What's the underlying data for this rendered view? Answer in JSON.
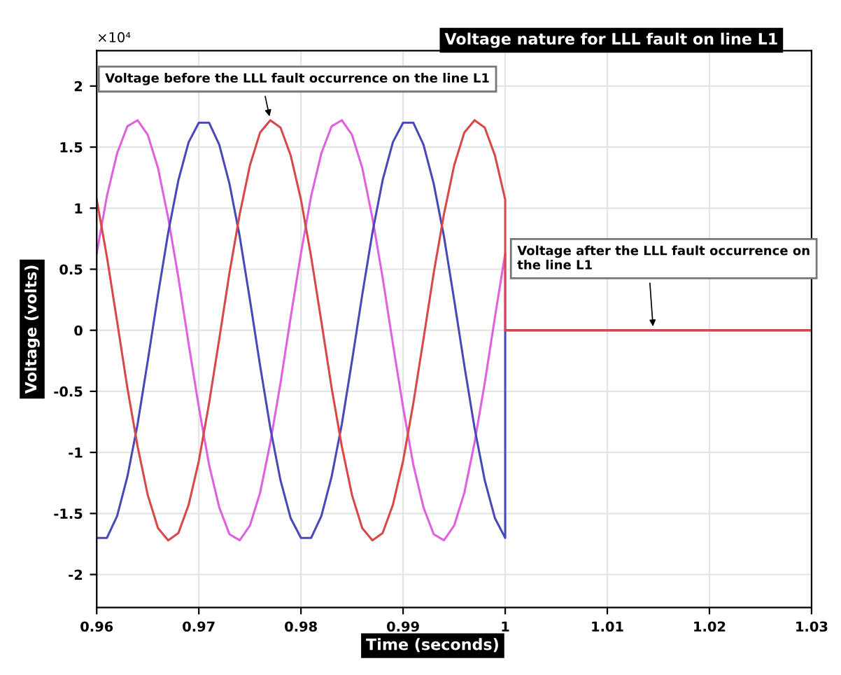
{
  "chart_data": {
    "type": "line",
    "title": "Voltage nature for LLL fault on line L1",
    "xlabel": "Time (seconds)",
    "ylabel": "Voltage (volts)",
    "x": [
      0.96,
      0.961,
      0.962,
      0.963,
      0.964,
      0.965,
      0.966,
      0.967,
      0.968,
      0.969,
      0.97,
      0.971,
      0.972,
      0.973,
      0.974,
      0.975,
      0.976,
      0.977,
      0.978,
      0.979,
      0.98,
      0.981,
      0.982,
      0.983,
      0.984,
      0.985,
      0.986,
      0.987,
      0.988,
      0.989,
      0.99,
      0.991,
      0.992,
      0.993,
      0.994,
      0.995,
      0.996,
      0.997,
      0.998,
      0.999,
      1,
      1,
      1.03
    ],
    "series": [
      {
        "color": "#e060e0",
        "values": [
          0.63,
          1.1,
          1.45,
          1.67,
          1.72,
          1.6,
          1.33,
          0.92,
          0.43,
          -0.11,
          -0.63,
          -1.1,
          -1.45,
          -1.67,
          -1.72,
          -1.6,
          -1.33,
          -0.92,
          -0.43,
          0.11,
          0.63,
          1.1,
          1.45,
          1.67,
          1.72,
          1.6,
          1.33,
          0.92,
          0.43,
          -0.11,
          -0.63,
          -1.1,
          -1.45,
          -1.67,
          -1.72,
          -1.6,
          -1.33,
          -0.92,
          -0.43,
          0.11,
          0.63,
          0,
          0
        ]
      },
      {
        "color": "#4848b8",
        "values": [
          -1.7,
          -1.7,
          -1.52,
          -1.2,
          -0.77,
          -0.25,
          0.29,
          0.8,
          1.23,
          1.54,
          1.7,
          1.7,
          1.52,
          1.2,
          0.77,
          0.25,
          -0.29,
          -0.8,
          -1.23,
          -1.54,
          -1.7,
          -1.7,
          -1.52,
          -1.2,
          -0.77,
          -0.25,
          0.29,
          0.8,
          1.23,
          1.54,
          1.7,
          1.7,
          1.52,
          1.2,
          0.77,
          0.25,
          -0.29,
          -0.8,
          -1.23,
          -1.54,
          -1.7,
          0,
          0
        ]
      },
      {
        "color": "#d84848",
        "values": [
          1.07,
          0.6,
          0.07,
          -0.47,
          -0.95,
          -1.35,
          -1.62,
          -1.72,
          -1.66,
          -1.43,
          -1.07,
          -0.6,
          -0.07,
          0.47,
          0.95,
          1.35,
          1.62,
          1.72,
          1.66,
          1.43,
          1.07,
          0.6,
          0.07,
          -0.47,
          -0.95,
          -1.35,
          -1.62,
          -1.72,
          -1.66,
          -1.43,
          -1.07,
          -0.6,
          -0.07,
          0.47,
          0.95,
          1.35,
          1.62,
          1.72,
          1.66,
          1.43,
          1.07,
          0,
          0
        ]
      }
    ],
    "xlim": [
      0.96,
      1.03
    ],
    "xticks": [
      0.96,
      0.97,
      0.98,
      0.99,
      1,
      1.01,
      1.02,
      1.03
    ],
    "ylim": [
      -2.27,
      2.29
    ],
    "yticks": [
      -2,
      -1.5,
      -1,
      -0.5,
      0,
      0.5,
      1,
      1.5,
      2
    ],
    "grid": true,
    "legend": false,
    "marker": "none",
    "line_style": "solid",
    "annotations": [
      "×10⁴",
      {
        "text": "Voltage before the LLL fault occurrence on the line L1",
        "x": 0.977,
        "y": 1.72
      },
      {
        "text": "Voltage after the LLL fault occurrence on\nthe line L1",
        "x": 1.0145,
        "y": 0
      }
    ]
  }
}
